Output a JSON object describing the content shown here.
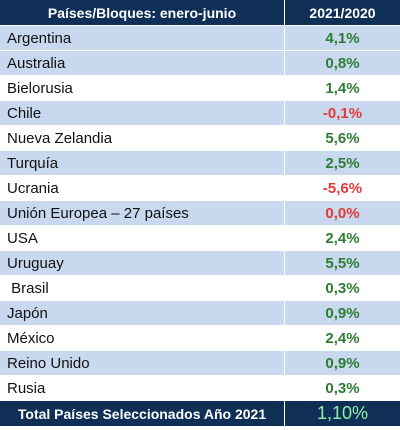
{
  "colors": {
    "header_bg": "#0f2f57",
    "row_alt_bg": "#c8d8ef",
    "positive": "#2e7d32",
    "negative": "#e53935",
    "total": "#8ff0a4"
  },
  "table": {
    "header": {
      "col1": "Países/Bloques: enero-junio",
      "col2": "2021/2020"
    },
    "rows": [
      {
        "country": "Argentina",
        "value": "4,1%",
        "sign": "positive"
      },
      {
        "country": "Australia",
        "value": "0,8%",
        "sign": "positive"
      },
      {
        "country": "Bielorusia",
        "value": "1,4%",
        "sign": "positive"
      },
      {
        "country": "Chile",
        "value": "-0,1%",
        "sign": "negative"
      },
      {
        "country": "Nueva Zelandia",
        "value": "5,6%",
        "sign": "positive"
      },
      {
        "country": "Turquía",
        "value": "2,5%",
        "sign": "positive"
      },
      {
        "country": "Ucrania",
        "value": "-5,6%",
        "sign": "negative"
      },
      {
        "country": "Unión Europea – 27 países",
        "value": "0,0%",
        "sign": "negative"
      },
      {
        "country": "USA",
        "value": "2,4%",
        "sign": "positive"
      },
      {
        "country": "Uruguay",
        "value": "5,5%",
        "sign": "positive"
      },
      {
        "country": " Brasil",
        "value": "0,3%",
        "sign": "positive"
      },
      {
        "country": "Japón",
        "value": "0,9%",
        "sign": "positive"
      },
      {
        "country": "México",
        "value": "2,4%",
        "sign": "positive"
      },
      {
        "country": "Reino Unido",
        "value": "0,9%",
        "sign": "positive"
      },
      {
        "country": "Rusia",
        "value": "0,3%",
        "sign": "positive"
      }
    ],
    "footer": {
      "label": "Total Países Seleccionados Año 2021",
      "value": "1,10%"
    }
  }
}
